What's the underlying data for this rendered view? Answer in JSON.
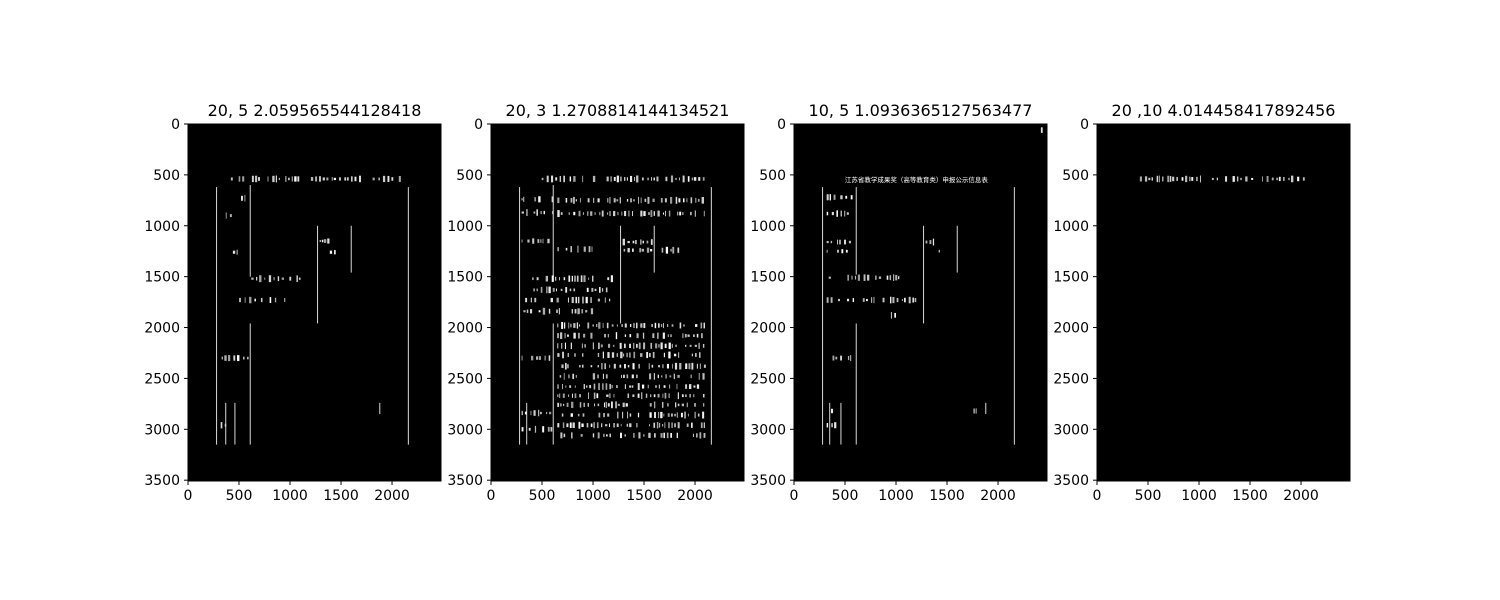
{
  "colors": {
    "figure_background": "#ffffff",
    "image_background": "#000000",
    "foreground_marks": "#ffffff",
    "axis_text": "#000000"
  },
  "chart_data": [
    {
      "type": "image",
      "title": "20, 5  2.059565544128418",
      "xlabel": "",
      "ylabel": "",
      "xlim": [
        0,
        2480
      ],
      "ylim": [
        3508,
        0
      ],
      "x_ticks": [
        0,
        500,
        1000,
        1500,
        2000
      ],
      "y_ticks": [
        0,
        500,
        1000,
        1500,
        2000,
        2500,
        3000,
        3500
      ],
      "grid": false,
      "legend": "none",
      "vlines": [
        {
          "x": 280,
          "y0": 620,
          "y1": 3150
        },
        {
          "x": 370,
          "y0": 2740,
          "y1": 3150
        },
        {
          "x": 460,
          "y0": 2740,
          "y1": 3150
        },
        {
          "x": 610,
          "y0": 600,
          "y1": 1500
        },
        {
          "x": 610,
          "y0": 1960,
          "y1": 3150
        },
        {
          "x": 1270,
          "y0": 1000,
          "y1": 1960
        },
        {
          "x": 1600,
          "y0": 1000,
          "y1": 1460
        },
        {
          "x": 1880,
          "y0": 2740,
          "y1": 2850
        },
        {
          "x": 2160,
          "y0": 620,
          "y1": 3150
        }
      ],
      "text_bands": [
        {
          "y": 540,
          "x0": 420,
          "x1": 2080
        },
        {
          "y": 730,
          "x0": 520,
          "x1": 560
        },
        {
          "y": 900,
          "x0": 370,
          "x1": 420
        },
        {
          "y": 1150,
          "x0": 1290,
          "x1": 1400
        },
        {
          "y": 1260,
          "x0": 1390,
          "x1": 1450
        },
        {
          "y": 1260,
          "x0": 440,
          "x1": 480
        },
        {
          "y": 1520,
          "x0": 620,
          "x1": 1100
        },
        {
          "y": 1730,
          "x0": 500,
          "x1": 950
        },
        {
          "y": 2300,
          "x0": 330,
          "x1": 580
        },
        {
          "y": 2840,
          "x0": 320,
          "x1": 360
        },
        {
          "y": 2960,
          "x0": 320,
          "x1": 360
        }
      ]
    },
    {
      "type": "image",
      "title": "20, 3  1.2708814144134521",
      "xlabel": "",
      "ylabel": "",
      "xlim": [
        0,
        2480
      ],
      "ylim": [
        3508,
        0
      ],
      "x_ticks": [
        0,
        500,
        1000,
        1500,
        2000
      ],
      "y_ticks": [
        0,
        500,
        1000,
        1500,
        2000,
        2500,
        3000,
        3500
      ],
      "grid": false,
      "legend": "none",
      "vlines": [
        {
          "x": 280,
          "y0": 620,
          "y1": 3150
        },
        {
          "x": 610,
          "y0": 600,
          "y1": 1500
        },
        {
          "x": 1270,
          "y0": 1000,
          "y1": 1960
        },
        {
          "x": 1600,
          "y0": 1000,
          "y1": 1460
        },
        {
          "x": 350,
          "y0": 2740,
          "y1": 3150
        },
        {
          "x": 610,
          "y0": 1960,
          "y1": 3150
        },
        {
          "x": 2160,
          "y0": 620,
          "y1": 3150
        }
      ],
      "text_bands": [
        {
          "y": 540,
          "x0": 420,
          "x1": 2080
        },
        {
          "y": 740,
          "x0": 300,
          "x1": 600
        },
        {
          "y": 750,
          "x0": 650,
          "x1": 2100
        },
        {
          "y": 870,
          "x0": 300,
          "x1": 600
        },
        {
          "y": 880,
          "x0": 650,
          "x1": 2100
        },
        {
          "y": 1150,
          "x0": 300,
          "x1": 600
        },
        {
          "y": 1230,
          "x0": 650,
          "x1": 1000
        },
        {
          "y": 1160,
          "x0": 1290,
          "x1": 1580
        },
        {
          "y": 1240,
          "x0": 1300,
          "x1": 1850
        },
        {
          "y": 1520,
          "x0": 300,
          "x1": 1200
        },
        {
          "y": 1630,
          "x0": 300,
          "x1": 1200
        },
        {
          "y": 1730,
          "x0": 300,
          "x1": 1200
        },
        {
          "y": 1840,
          "x0": 300,
          "x1": 1000
        },
        {
          "y": 1980,
          "x0": 650,
          "x1": 2100
        },
        {
          "y": 2080,
          "x0": 650,
          "x1": 2100
        },
        {
          "y": 2180,
          "x0": 650,
          "x1": 2100
        },
        {
          "y": 2270,
          "x0": 650,
          "x1": 2100
        },
        {
          "y": 2300,
          "x0": 300,
          "x1": 600
        },
        {
          "y": 2380,
          "x0": 650,
          "x1": 2100
        },
        {
          "y": 2480,
          "x0": 650,
          "x1": 2100
        },
        {
          "y": 2580,
          "x0": 650,
          "x1": 2100
        },
        {
          "y": 2670,
          "x0": 650,
          "x1": 2100
        },
        {
          "y": 2760,
          "x0": 650,
          "x1": 2100
        },
        {
          "y": 2860,
          "x0": 650,
          "x1": 2100
        },
        {
          "y": 2960,
          "x0": 650,
          "x1": 2100
        },
        {
          "y": 3060,
          "x0": 650,
          "x1": 2100
        },
        {
          "y": 2840,
          "x0": 300,
          "x1": 600
        },
        {
          "y": 3000,
          "x0": 300,
          "x1": 600
        }
      ]
    },
    {
      "type": "image",
      "title": "10, 5  1.0936365127563477",
      "xlabel": "",
      "ylabel": "",
      "xlim": [
        0,
        2480
      ],
      "ylim": [
        3508,
        0
      ],
      "x_ticks": [
        0,
        500,
        1000,
        1500,
        2000
      ],
      "y_ticks": [
        0,
        500,
        1000,
        1500,
        2000,
        2500,
        3000,
        3500
      ],
      "grid": false,
      "legend": "none",
      "header_text": "江苏省教学成果奖（高等教育类）申报公示信息表",
      "header_text_y": 540,
      "vlines": [
        {
          "x": 280,
          "y0": 620,
          "y1": 3150
        },
        {
          "x": 350,
          "y0": 2740,
          "y1": 3150
        },
        {
          "x": 460,
          "y0": 2740,
          "y1": 3150
        },
        {
          "x": 610,
          "y0": 620,
          "y1": 1480
        },
        {
          "x": 610,
          "y0": 1960,
          "y1": 3150
        },
        {
          "x": 1270,
          "y0": 1000,
          "y1": 1960
        },
        {
          "x": 1600,
          "y0": 1000,
          "y1": 1460
        },
        {
          "x": 1880,
          "y0": 2740,
          "y1": 2850
        },
        {
          "x": 2160,
          "y0": 620,
          "y1": 3150
        }
      ],
      "text_bands": [
        {
          "y": 720,
          "x0": 320,
          "x1": 560
        },
        {
          "y": 880,
          "x0": 320,
          "x1": 560
        },
        {
          "y": 1160,
          "x0": 320,
          "x1": 560
        },
        {
          "y": 1250,
          "x0": 320,
          "x1": 560
        },
        {
          "y": 1160,
          "x0": 1290,
          "x1": 1450
        },
        {
          "y": 1250,
          "x0": 1390,
          "x1": 1450
        },
        {
          "y": 1510,
          "x0": 320,
          "x1": 1100
        },
        {
          "y": 1730,
          "x0": 320,
          "x1": 1200
        },
        {
          "y": 1880,
          "x0": 950,
          "x1": 990
        },
        {
          "y": 2300,
          "x0": 320,
          "x1": 560
        },
        {
          "y": 2820,
          "x0": 320,
          "x1": 400
        },
        {
          "y": 2960,
          "x0": 320,
          "x1": 400
        },
        {
          "y": 2820,
          "x0": 1720,
          "x1": 1780
        },
        {
          "y": 60,
          "x0": 2420,
          "x1": 2450
        }
      ]
    },
    {
      "type": "image",
      "title": "20 ,10  4.014458417892456",
      "xlabel": "",
      "ylabel": "",
      "xlim": [
        0,
        2480
      ],
      "ylim": [
        3508,
        0
      ],
      "x_ticks": [
        0,
        500,
        1000,
        1500,
        2000
      ],
      "y_ticks": [
        0,
        500,
        1000,
        1500,
        2000,
        2500,
        3000,
        3500
      ],
      "grid": false,
      "legend": "none",
      "vlines": [],
      "text_bands": [
        {
          "y": 540,
          "x0": 420,
          "x1": 2080
        }
      ]
    }
  ]
}
